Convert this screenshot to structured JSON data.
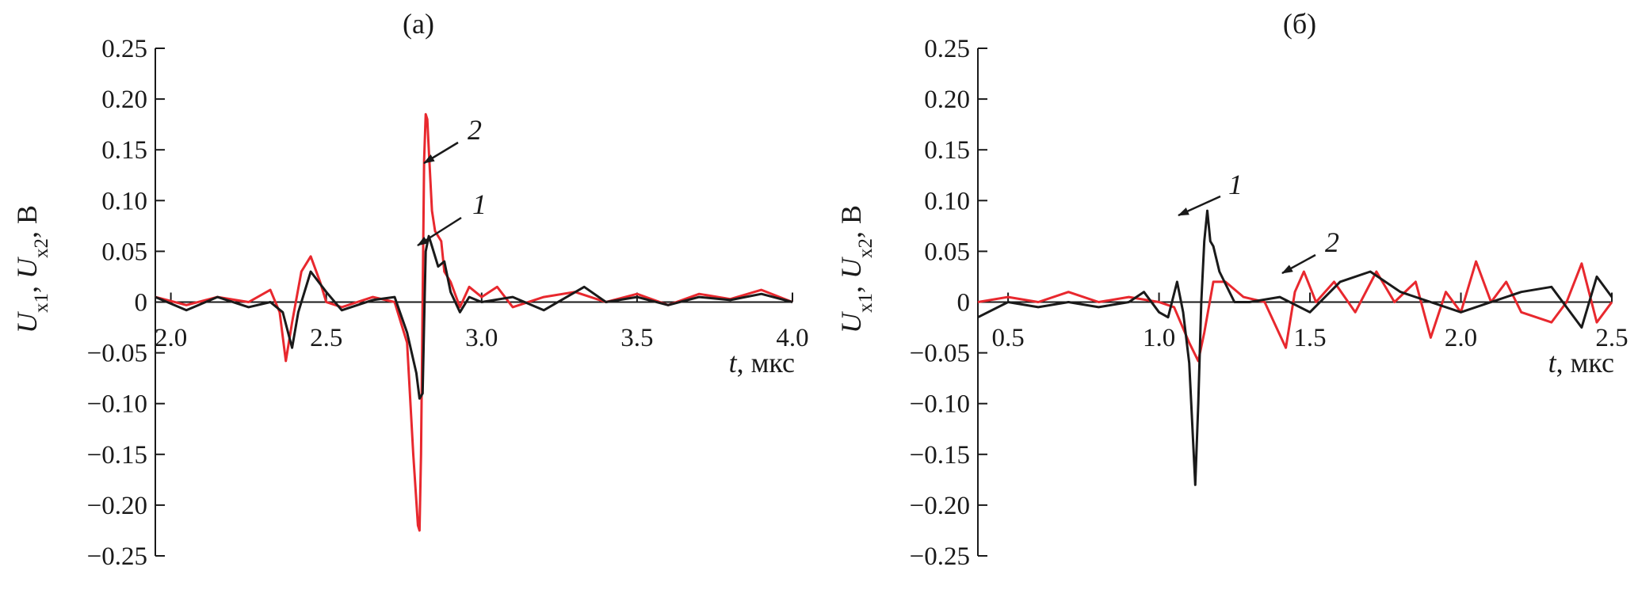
{
  "chart_data": [
    {
      "type": "line",
      "title": "(а)",
      "ylabel_parts": [
        "U",
        "x1",
        ", ",
        "U",
        "x2",
        ", В"
      ],
      "xlabel_parts": [
        "t",
        ", мкс"
      ],
      "xlim": [
        1.95,
        4.0
      ],
      "ylim": [
        -0.25,
        0.25
      ],
      "x_ticks": [
        "2.0",
        "2.5",
        "3.0",
        "3.5",
        "4.0"
      ],
      "x_tick_values": [
        2.0,
        2.5,
        3.0,
        3.5,
        4.0
      ],
      "y_ticks": [
        "0.25",
        "0.20",
        "0.15",
        "0.10",
        "0.05",
        "0",
        "−0.05",
        "−0.10",
        "−0.15",
        "−0.20",
        "−0.25"
      ],
      "y_tick_values": [
        0.25,
        0.2,
        0.15,
        0.1,
        0.05,
        0,
        -0.05,
        -0.1,
        -0.15,
        -0.2,
        -0.25
      ],
      "series": [
        {
          "name": "1",
          "color": "#1a1a1a",
          "x": [
            1.95,
            2.05,
            2.15,
            2.25,
            2.32,
            2.36,
            2.39,
            2.41,
            2.45,
            2.5,
            2.55,
            2.65,
            2.72,
            2.76,
            2.79,
            2.8,
            2.81,
            2.815,
            2.82,
            2.83,
            2.84,
            2.86,
            2.88,
            2.9,
            2.93,
            2.96,
            3.0,
            3.1,
            3.2,
            3.33,
            3.4,
            3.5,
            3.6,
            3.7,
            3.8,
            3.9,
            4.0
          ],
          "y": [
            0.005,
            -0.008,
            0.005,
            -0.005,
            0.0,
            -0.01,
            -0.045,
            -0.01,
            0.03,
            0.01,
            -0.008,
            0.002,
            0.005,
            -0.03,
            -0.07,
            -0.095,
            -0.09,
            -0.02,
            0.05,
            0.065,
            0.055,
            0.035,
            0.04,
            0.01,
            -0.01,
            0.005,
            0.0,
            0.005,
            -0.008,
            0.015,
            0.0,
            0.005,
            -0.003,
            0.005,
            0.002,
            0.008,
            0.0
          ]
        },
        {
          "name": "2",
          "color": "#e8282e",
          "x": [
            1.95,
            2.05,
            2.15,
            2.25,
            2.32,
            2.35,
            2.37,
            2.39,
            2.42,
            2.45,
            2.48,
            2.5,
            2.55,
            2.65,
            2.72,
            2.76,
            2.78,
            2.795,
            2.8,
            2.805,
            2.81,
            2.815,
            2.82,
            2.825,
            2.83,
            2.84,
            2.85,
            2.87,
            2.88,
            2.9,
            2.93,
            2.96,
            3.0,
            3.05,
            3.1,
            3.2,
            3.3,
            3.4,
            3.5,
            3.6,
            3.7,
            3.8,
            3.9,
            4.0
          ],
          "y": [
            0.005,
            -0.003,
            0.005,
            0.0,
            0.012,
            -0.01,
            -0.058,
            -0.02,
            0.03,
            0.045,
            0.02,
            0.0,
            -0.005,
            0.005,
            0.0,
            -0.04,
            -0.15,
            -0.22,
            -0.225,
            -0.15,
            0.0,
            0.14,
            0.185,
            0.18,
            0.15,
            0.09,
            0.07,
            0.06,
            0.03,
            0.02,
            -0.005,
            0.015,
            0.005,
            0.015,
            -0.005,
            0.005,
            0.01,
            0.0,
            0.008,
            -0.003,
            0.008,
            0.003,
            0.012,
            0.0
          ]
        }
      ],
      "annotations": [
        {
          "label": "2",
          "series": "2"
        },
        {
          "label": "1",
          "series": "1"
        }
      ]
    },
    {
      "type": "line",
      "title": "(б)",
      "ylabel_parts": [
        "U",
        "x1",
        ", ",
        "U",
        "x2",
        ", В"
      ],
      "xlabel_parts": [
        "t",
        ", мкс"
      ],
      "xlim": [
        0.4,
        2.5
      ],
      "ylim": [
        -0.25,
        0.25
      ],
      "x_ticks": [
        "0.5",
        "1.0",
        "1.5",
        "2.0",
        "2.5"
      ],
      "x_tick_values": [
        0.5,
        1.0,
        1.5,
        2.0,
        2.5
      ],
      "y_ticks": [
        "0.25",
        "0.20",
        "0.15",
        "0.10",
        "0.05",
        "0",
        "−0.05",
        "−0.10",
        "−0.15",
        "−0.20",
        "−0.25"
      ],
      "y_tick_values": [
        0.25,
        0.2,
        0.15,
        0.1,
        0.05,
        0,
        -0.05,
        -0.1,
        -0.15,
        -0.2,
        -0.25
      ],
      "series": [
        {
          "name": "1",
          "color": "#1a1a1a",
          "x": [
            0.4,
            0.5,
            0.6,
            0.7,
            0.8,
            0.9,
            0.95,
            1.0,
            1.03,
            1.06,
            1.08,
            1.1,
            1.12,
            1.13,
            1.14,
            1.15,
            1.16,
            1.17,
            1.18,
            1.2,
            1.25,
            1.3,
            1.4,
            1.5,
            1.6,
            1.7,
            1.8,
            1.9,
            2.0,
            2.1,
            2.2,
            2.3,
            2.4,
            2.45,
            2.5
          ],
          "y": [
            -0.015,
            0.0,
            -0.005,
            0.0,
            -0.005,
            0.0,
            0.01,
            -0.01,
            -0.015,
            0.02,
            -0.01,
            -0.06,
            -0.18,
            -0.1,
            0.0,
            0.06,
            0.09,
            0.06,
            0.055,
            0.03,
            0.0,
            0.0,
            0.005,
            -0.01,
            0.02,
            0.03,
            0.01,
            0.0,
            -0.01,
            0.0,
            0.01,
            0.015,
            -0.025,
            0.025,
            0.005
          ]
        },
        {
          "name": "2",
          "color": "#e8282e",
          "x": [
            0.4,
            0.5,
            0.6,
            0.7,
            0.8,
            0.9,
            1.0,
            1.05,
            1.1,
            1.13,
            1.15,
            1.18,
            1.22,
            1.28,
            1.35,
            1.42,
            1.45,
            1.48,
            1.52,
            1.58,
            1.65,
            1.72,
            1.78,
            1.85,
            1.9,
            1.95,
            2.0,
            2.05,
            2.1,
            2.15,
            2.2,
            2.3,
            2.35,
            2.4,
            2.45,
            2.5
          ],
          "y": [
            0.0,
            0.005,
            0.0,
            0.01,
            0.0,
            0.005,
            0.0,
            -0.005,
            -0.04,
            -0.058,
            -0.03,
            0.02,
            0.02,
            0.005,
            0.0,
            -0.045,
            0.01,
            0.03,
            0.0,
            0.02,
            -0.01,
            0.03,
            0.0,
            0.02,
            -0.035,
            0.01,
            -0.01,
            0.04,
            0.0,
            0.02,
            -0.01,
            -0.02,
            0.0,
            0.038,
            -0.02,
            0.0
          ]
        }
      ],
      "annotations": [
        {
          "label": "1",
          "series": "1"
        },
        {
          "label": "2",
          "series": "2"
        }
      ]
    }
  ]
}
